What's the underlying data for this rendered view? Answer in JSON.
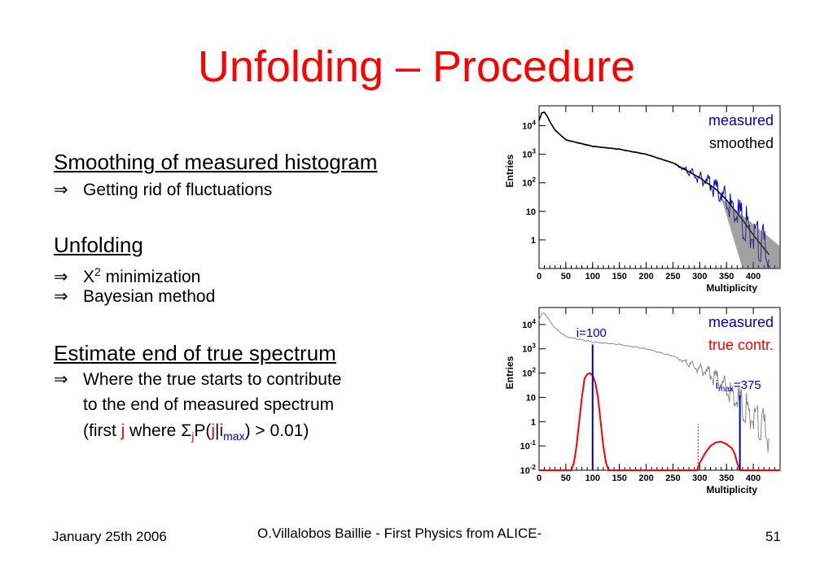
{
  "slide": {
    "title": "Unfolding – Procedure",
    "sections": [
      {
        "heading": "Smoothing of measured histogram",
        "bullets": [
          "Getting rid of fluctuations"
        ]
      },
      {
        "heading": "Unfolding",
        "bullets": [
          "X",
          "2",
          " minimization",
          "Bayesian method"
        ]
      },
      {
        "heading": "Estimate end of true spectrum",
        "bullets": [
          "Where the true starts to contribute",
          "to the end of measured spectrum"
        ],
        "formula": {
          "prefix": "(first ",
          "j": "j",
          "where": " where Σ",
          "sub_j": "j",
          "p_open": "P(",
          "j2": "j",
          "bar": "|",
          "i": "i",
          "sub_max": "max",
          "suffix": ") > 0.01)"
        }
      }
    ],
    "arrow_symbol": "⇒"
  },
  "footer": {
    "date": "January 25th 2006",
    "author": "O.Villalobos Baillie - First Physics from ALICE-",
    "page": "51"
  },
  "colors": {
    "title": "#ff0000",
    "measured": "#0000cc",
    "true_contr": "#ff0000"
  },
  "chart_data": [
    {
      "type": "line",
      "xlabel": "Multiplicity",
      "ylabel": "Entries",
      "xlim": [
        0,
        450
      ],
      "ylim": [
        0.1,
        50000
      ],
      "yscale": "log",
      "xticks": [
        "0",
        "50",
        "100",
        "150",
        "200",
        "250",
        "300",
        "350",
        "400"
      ],
      "yticks": [
        "1",
        "10",
        "10^2",
        "10^3",
        "10^4"
      ],
      "legend": {
        "placement": "top-right",
        "entries": [
          "measured",
          "smoothed"
        ]
      },
      "series": [
        {
          "name": "measured",
          "color": "#0000cc",
          "x": [
            0,
            5,
            10,
            15,
            20,
            30,
            50,
            100,
            150,
            200,
            250,
            300,
            330,
            350,
            380,
            400,
            420,
            430
          ],
          "values": [
            15000,
            28000,
            30000,
            22000,
            14000,
            7000,
            3200,
            1900,
            1500,
            1000,
            500,
            150,
            60,
            25,
            5,
            1.5,
            0.5,
            0.3
          ]
        },
        {
          "name": "smoothed",
          "color": "#000000",
          "x": [
            0,
            5,
            10,
            15,
            20,
            30,
            50,
            100,
            150,
            200,
            250,
            300,
            330,
            350,
            380,
            400,
            420,
            430
          ],
          "values": [
            15000,
            28000,
            30000,
            22000,
            14000,
            7000,
            3200,
            1900,
            1500,
            1000,
            500,
            150,
            60,
            25,
            5,
            1.5,
            0.5,
            0.3
          ]
        }
      ]
    },
    {
      "type": "line",
      "xlabel": "Multiplicity",
      "ylabel": "Entries",
      "xlim": [
        0,
        450
      ],
      "ylim": [
        0.01,
        50000
      ],
      "yscale": "log",
      "xticks": [
        "0",
        "50",
        "100",
        "150",
        "200",
        "250",
        "300",
        "350",
        "400"
      ],
      "yticks": [
        "10^-2",
        "10^-1",
        "1",
        "10",
        "10^2",
        "10^3",
        "10^4"
      ],
      "legend": {
        "placement": "top-right",
        "entries": [
          "measured",
          "true contr."
        ]
      },
      "annotations": [
        {
          "text_parts": [
            "i=100"
          ],
          "x": 100
        },
        {
          "text_parts": [
            "i",
            "max",
            "=375"
          ],
          "x": 375
        }
      ],
      "series": [
        {
          "name": "measured",
          "color": "#888888",
          "x": [
            0,
            5,
            10,
            20,
            30,
            50,
            100,
            150,
            200,
            250,
            300,
            330,
            350,
            380,
            400,
            420,
            430
          ],
          "values": [
            15000,
            28000,
            30000,
            14000,
            7000,
            3200,
            1900,
            1500,
            1000,
            500,
            150,
            60,
            25,
            5,
            1.5,
            0.5,
            0.3
          ]
        },
        {
          "name": "true contr.",
          "color": "#ff0000",
          "x": [
            0,
            60,
            65,
            70,
            75,
            80,
            85,
            90,
            95,
            100,
            105,
            110,
            115,
            120,
            125,
            130,
            135,
            295,
            300,
            310,
            320,
            330,
            340,
            350,
            360,
            365,
            370,
            375,
            450
          ],
          "values": [
            0.01,
            0.01,
            0.02,
            0.1,
            1,
            10,
            60,
            90,
            100,
            80,
            40,
            10,
            1,
            0.1,
            0.02,
            0.01,
            0.01,
            0.01,
            0.02,
            0.05,
            0.1,
            0.14,
            0.15,
            0.12,
            0.08,
            0.05,
            0.02,
            0.01,
            0.01
          ]
        }
      ]
    }
  ]
}
